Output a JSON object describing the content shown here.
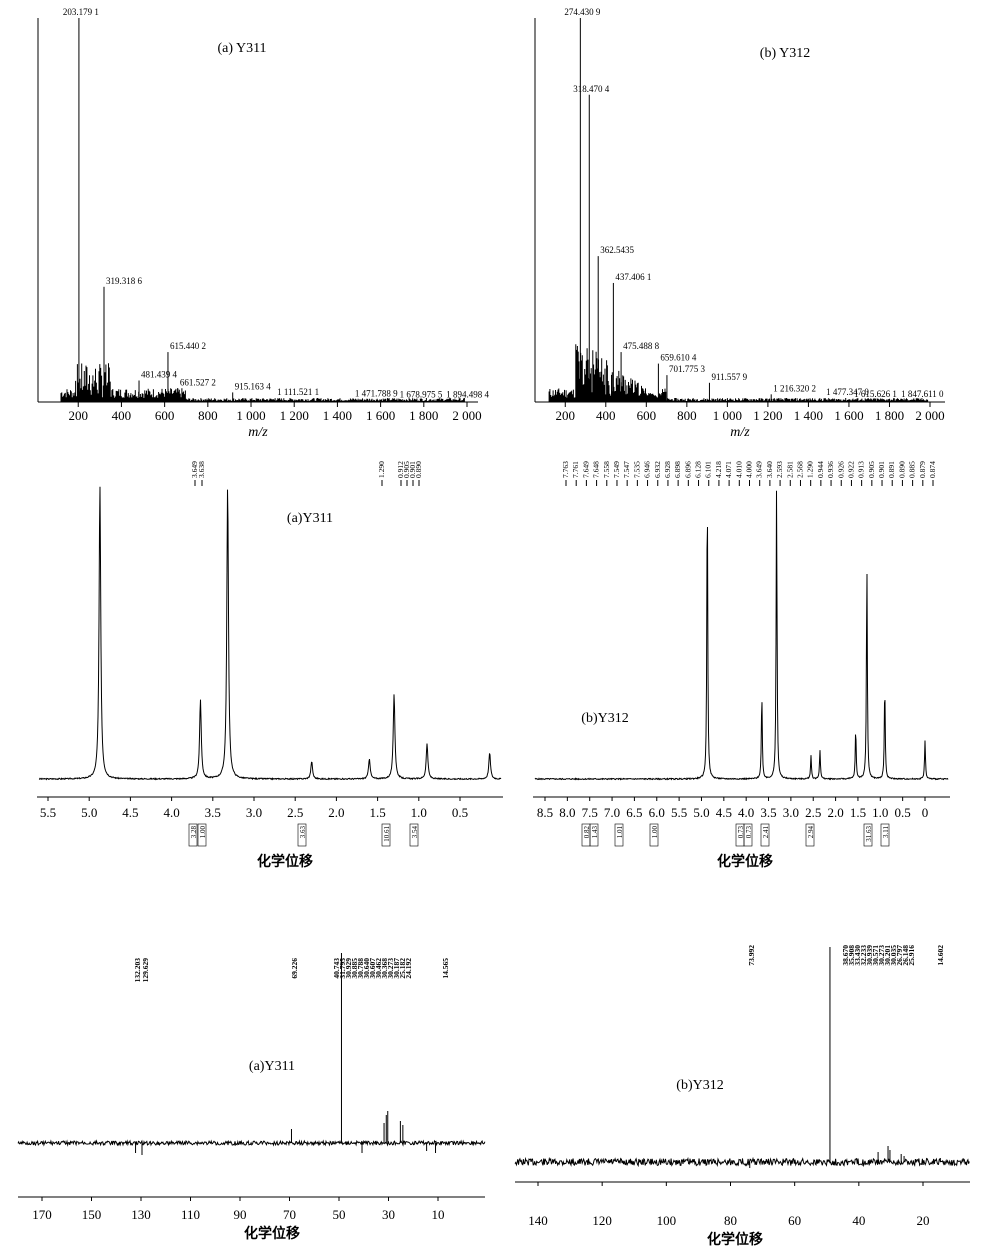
{
  "chart_data": [
    {
      "id": "msA",
      "type": "mass_spectrum",
      "title": "(a) Y311",
      "xlabel": "m/z",
      "xlim": [
        0,
        2000
      ],
      "ticks": [
        "200",
        "400",
        "600",
        "800",
        "1 000",
        "1 200",
        "1 400",
        "1 600",
        "1 800",
        "2 000"
      ],
      "peaks": [
        {
          "x": 203.1791,
          "label": "203.179 1",
          "rel": 1.0
        },
        {
          "x": 319.3186,
          "label": "319.318 6",
          "rel": 0.3
        },
        {
          "x": 481.4394,
          "label": "481.439 4",
          "rel": 0.056
        },
        {
          "x": 615.4402,
          "label": "615.440 2",
          "rel": 0.13
        },
        {
          "x": 661.5272,
          "label": "661.527 2",
          "rel": 0.035
        },
        {
          "x": 915.1634,
          "label": "915.163 4",
          "rel": 0.025
        },
        {
          "x": 1111.5211,
          "label": "1 111.521 1",
          "rel": 0.01
        },
        {
          "x": 1471.7889,
          "label": "1 471.788 9",
          "rel": 0.006
        },
        {
          "x": 1678.9755,
          "label": "1 678.975 5",
          "rel": 0.004
        },
        {
          "x": 1894.4984,
          "label": "1 894.498 4",
          "rel": 0.004
        }
      ]
    },
    {
      "id": "msB",
      "type": "mass_spectrum",
      "title": "(b) Y312",
      "xlabel": "m/z",
      "xlim": [
        0,
        2000
      ],
      "ticks": [
        "200",
        "400",
        "600",
        "800",
        "1 000",
        "1 200",
        "1 400",
        "1 600",
        "1 800",
        "2 000"
      ],
      "peaks": [
        {
          "x": 274.4309,
          "label": "274.430 9",
          "rel": 1.0
        },
        {
          "x": 318.4704,
          "label": "318.470 4",
          "rel": 0.8
        },
        {
          "x": 362.5435,
          "label": "362.5435",
          "rel": 0.38
        },
        {
          "x": 437.4061,
          "label": "437.406 1",
          "rel": 0.31
        },
        {
          "x": 475.4888,
          "label": "475.488 8",
          "rel": 0.13
        },
        {
          "x": 659.6104,
          "label": "659.610 4",
          "rel": 0.1
        },
        {
          "x": 701.7753,
          "label": "701.775 3",
          "rel": 0.07
        },
        {
          "x": 911.5579,
          "label": "911.557 9",
          "rel": 0.05
        },
        {
          "x": 1216.3202,
          "label": "1 216.320 2",
          "rel": 0.02
        },
        {
          "x": 1477.347,
          "label": "1 477.347 0",
          "rel": 0.01
        },
        {
          "x": 1615.6261,
          "label": "1 615.626 1",
          "rel": 0.005
        },
        {
          "x": 1847.611,
          "label": "1 847.611 0",
          "rel": 0.005
        }
      ]
    },
    {
      "id": "hA",
      "type": "nmr_1h",
      "title": "(a)Y311",
      "xlabel": "化学位移",
      "xlim": [
        5.8,
        -0.2
      ],
      "ticks": [
        "5.5",
        "5.0",
        "4.5",
        "4.0",
        "3.5",
        "3.0",
        "2.5",
        "2.0",
        "1.5",
        "1.0",
        "0.5"
      ],
      "shift_labels": [
        "3.649",
        "3.638",
        "1.290",
        "0.912",
        "0.905",
        "0.901",
        "0.890"
      ],
      "integrals": [
        "3.28",
        "1.00",
        "3.63",
        "10.61",
        "3.54"
      ],
      "peaks": [
        [
          4.87,
          1.0
        ],
        [
          3.65,
          0.27
        ],
        [
          3.32,
          1.0
        ],
        [
          2.3,
          0.06
        ],
        [
          1.6,
          0.07
        ],
        [
          1.3,
          0.29
        ],
        [
          0.9,
          0.12
        ],
        [
          0.14,
          0.09
        ]
      ]
    },
    {
      "id": "hB",
      "type": "nmr_1h",
      "title": "(b)Y312",
      "xlabel": "化学位移",
      "xlim": [
        8.9,
        -0.4
      ],
      "ticks": [
        "8.5",
        "8.0",
        "7.5",
        "7.0",
        "6.5",
        "6.0",
        "5.5",
        "5.0",
        "4.5",
        "4.0",
        "3.5",
        "3.0",
        "2.5",
        "2.0",
        "1.5",
        "1.0",
        "0.5",
        "0"
      ],
      "shift_labels": [
        "7.763",
        "7.761",
        "7.649",
        "7.648",
        "7.558",
        "7.549",
        "7.547",
        "7.535",
        "6.946",
        "6.932",
        "6.928",
        "6.898",
        "6.896",
        "6.128",
        "6.101",
        "4.218",
        "4.071",
        "4.010",
        "4.000",
        "3.649",
        "3.640",
        "2.593",
        "2.581",
        "2.568",
        "1.290",
        "0.944",
        "0.936",
        "0.926",
        "0.922",
        "0.913",
        "0.905",
        "0.901",
        "0.891",
        "0.890",
        "0.885",
        "0.879",
        "0.874"
      ],
      "integrals": [
        "0.82",
        "1.43",
        "1.01",
        "1.00",
        "0.73",
        "0.73",
        "2.41",
        "2.94",
        "31.63",
        "3.11"
      ],
      "peaks": [
        [
          4.87,
          1.0
        ],
        [
          3.65,
          0.29
        ],
        [
          3.32,
          1.0
        ],
        [
          2.55,
          0.08
        ],
        [
          2.35,
          0.1
        ],
        [
          1.55,
          0.17
        ],
        [
          1.3,
          0.73
        ],
        [
          0.9,
          0.32
        ],
        [
          0.0,
          0.13
        ]
      ]
    },
    {
      "id": "cA",
      "type": "nmr_13c",
      "title": "(a)Y311",
      "xlabel": "化学位移",
      "xlim": [
        182,
        -5
      ],
      "ticks": [
        "170",
        "150",
        "130",
        "110",
        "90",
        "70",
        "50",
        "30",
        "10"
      ],
      "shift_labels": [
        "132.203",
        "129.629",
        "69.226",
        "40.743",
        "31.795",
        "30.929",
        "30.885",
        "30.788",
        "30.640",
        "30.607",
        "30.462",
        "30.368",
        "30.273",
        "30.187",
        "25.182",
        "24.192",
        "14.565"
      ]
    },
    {
      "id": "cB",
      "type": "nmr_13c",
      "title": "(b)Y312",
      "xlabel": "化学位移",
      "xlim": [
        148,
        8
      ],
      "ticks": [
        "140",
        "120",
        "100",
        "80",
        "60",
        "40",
        "20"
      ],
      "shift_labels": [
        "73.992",
        "38.670",
        "35.908",
        "33.430",
        "32.233",
        "30.939",
        "30.571",
        "30.273",
        "30.201",
        "30.035",
        "26.797",
        "26.148",
        "25.916",
        "14.602"
      ]
    }
  ]
}
